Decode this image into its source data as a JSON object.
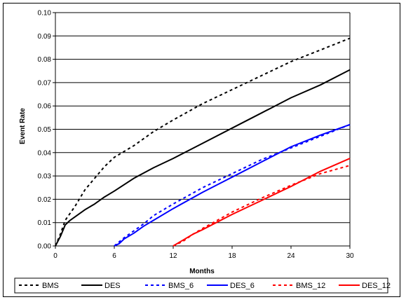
{
  "chart_data": {
    "type": "line",
    "title": "",
    "xlabel": "Months",
    "ylabel": "Event Rate",
    "xlim": [
      0,
      30
    ],
    "ylim": [
      0,
      0.1
    ],
    "x_ticks": [
      "0",
      "6",
      "12",
      "18",
      "24",
      "30"
    ],
    "y_ticks": [
      "0.00",
      "0.01",
      "0.02",
      "0.03",
      "0.04",
      "0.05",
      "0.06",
      "0.07",
      "0.08",
      "0.09",
      "0.10"
    ],
    "grid": "horizontal",
    "legend_position": "bottom",
    "series": [
      {
        "name": "BMS",
        "color": "#000000",
        "dash": "dashed",
        "points": [
          [
            0,
            0
          ],
          [
            0.5,
            0.005
          ],
          [
            1,
            0.011
          ],
          [
            1.5,
            0.014
          ],
          [
            2,
            0.017
          ],
          [
            3,
            0.024
          ],
          [
            4,
            0.029
          ],
          [
            5,
            0.034
          ],
          [
            6,
            0.038
          ],
          [
            8,
            0.043
          ],
          [
            10,
            0.049
          ],
          [
            12,
            0.054
          ],
          [
            15,
            0.061
          ],
          [
            18,
            0.067
          ],
          [
            21,
            0.073
          ],
          [
            24,
            0.079
          ],
          [
            27,
            0.084
          ],
          [
            30,
            0.089
          ]
        ]
      },
      {
        "name": "DES",
        "color": "#000000",
        "dash": "solid",
        "points": [
          [
            0,
            0
          ],
          [
            0.5,
            0.004
          ],
          [
            1,
            0.009
          ],
          [
            1.5,
            0.011
          ],
          [
            2,
            0.0125
          ],
          [
            3,
            0.0155
          ],
          [
            4,
            0.018
          ],
          [
            5,
            0.021
          ],
          [
            6,
            0.0235
          ],
          [
            8,
            0.029
          ],
          [
            10,
            0.0335
          ],
          [
            12,
            0.0375
          ],
          [
            15,
            0.044
          ],
          [
            18,
            0.0505
          ],
          [
            21,
            0.057
          ],
          [
            24,
            0.0635
          ],
          [
            27,
            0.069
          ],
          [
            30,
            0.0755
          ]
        ]
      },
      {
        "name": "BMS_6",
        "color": "#0000FF",
        "dash": "dashed",
        "points": [
          [
            6,
            0
          ],
          [
            7,
            0.0035
          ],
          [
            8,
            0.0065
          ],
          [
            9,
            0.0095
          ],
          [
            10,
            0.013
          ],
          [
            12,
            0.018
          ],
          [
            15,
            0.025
          ],
          [
            18,
            0.031
          ],
          [
            21,
            0.037
          ],
          [
            24,
            0.042
          ],
          [
            27,
            0.047
          ],
          [
            30,
            0.052
          ]
        ]
      },
      {
        "name": "DES_6",
        "color": "#0000FF",
        "dash": "solid",
        "points": [
          [
            6,
            0
          ],
          [
            6.5,
            0.001
          ],
          [
            7,
            0.003
          ],
          [
            8,
            0.0055
          ],
          [
            9,
            0.0085
          ],
          [
            10,
            0.011
          ],
          [
            12,
            0.016
          ],
          [
            15,
            0.023
          ],
          [
            18,
            0.0295
          ],
          [
            21,
            0.036
          ],
          [
            24,
            0.0425
          ],
          [
            27,
            0.0475
          ],
          [
            30,
            0.052
          ]
        ]
      },
      {
        "name": "BMS_12",
        "color": "#FF0000",
        "dash": "dashed",
        "points": [
          [
            12,
            0
          ],
          [
            13,
            0.002
          ],
          [
            14,
            0.005
          ],
          [
            15,
            0.0075
          ],
          [
            18,
            0.0145
          ],
          [
            21,
            0.0205
          ],
          [
            24,
            0.026
          ],
          [
            27,
            0.031
          ],
          [
            30,
            0.0345
          ]
        ]
      },
      {
        "name": "DES_12",
        "color": "#FF0000",
        "dash": "solid",
        "points": [
          [
            12,
            0
          ],
          [
            13,
            0.0025
          ],
          [
            14,
            0.005
          ],
          [
            15,
            0.007
          ],
          [
            18,
            0.0135
          ],
          [
            21,
            0.0195
          ],
          [
            24,
            0.0255
          ],
          [
            27,
            0.032
          ],
          [
            30,
            0.0375
          ]
        ]
      }
    ]
  }
}
